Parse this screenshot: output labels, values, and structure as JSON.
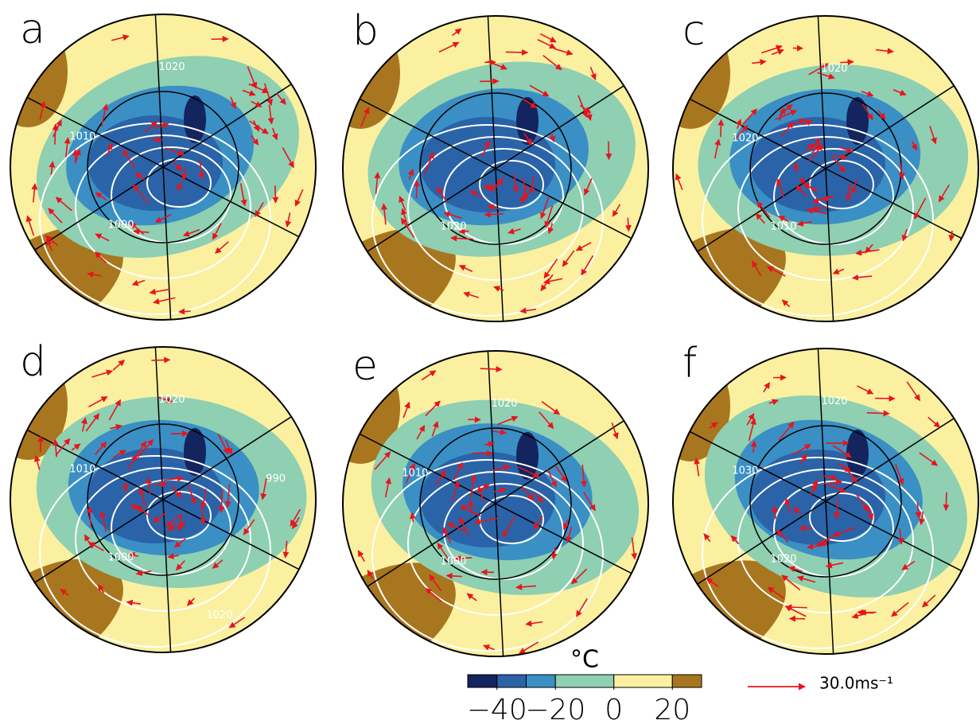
{
  "panels": [
    {
      "label": "a",
      "contour_labels": [
        "1000",
        "1010",
        "1020"
      ]
    },
    {
      "label": "b",
      "contour_labels": [
        "1020"
      ]
    },
    {
      "label": "c",
      "contour_labels": [
        "1010",
        "1020",
        "1020"
      ]
    },
    {
      "label": "d",
      "contour_labels": [
        "1000",
        "1010",
        "1020",
        "990",
        "1020"
      ]
    },
    {
      "label": "e",
      "contour_labels": [
        "1000",
        "1010",
        "1020"
      ]
    },
    {
      "label": "f",
      "contour_labels": [
        "1020",
        "1030",
        "1020"
      ]
    }
  ],
  "colorbar": {
    "unit": "°C",
    "lim": [
      -50,
      30
    ],
    "segments": [
      {
        "from": -50,
        "to": -40,
        "color": "#13245e"
      },
      {
        "from": -40,
        "to": -30,
        "color": "#2a63a8"
      },
      {
        "from": -30,
        "to": -20,
        "color": "#3a8fc4"
      },
      {
        "from": -20,
        "to": 0,
        "color": "#8fcfb2"
      },
      {
        "from": 0,
        "to": 20,
        "color": "#faf0a0"
      },
      {
        "from": 20,
        "to": 30,
        "color": "#a8761e"
      }
    ],
    "ticks": [
      {
        "value": -40,
        "label": "−40"
      },
      {
        "value": -20,
        "label": "−20"
      },
      0,
      20
    ]
  },
  "vector_legend": {
    "label": "30.0ms⁻¹"
  }
}
